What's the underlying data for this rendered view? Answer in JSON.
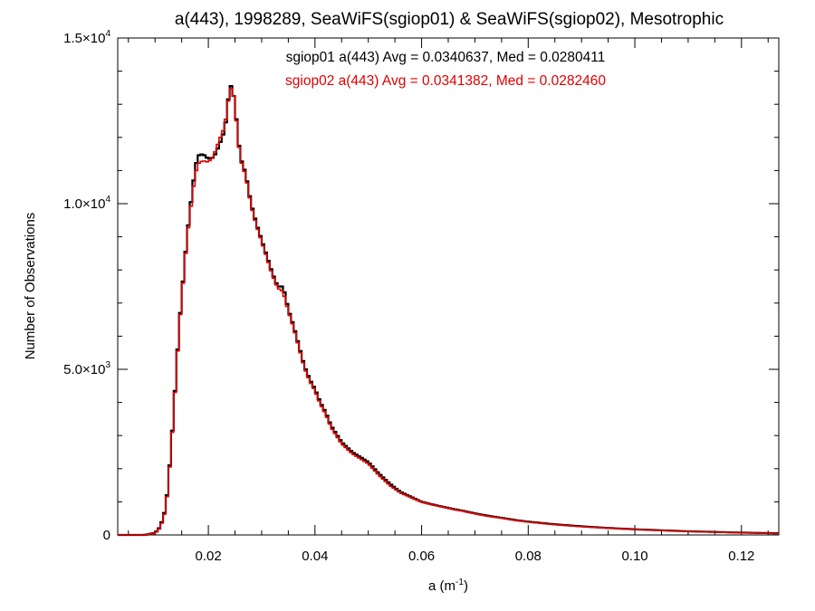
{
  "chart_data": {
    "type": "line",
    "title": "a(443), 1998289, SeaWiFS(sgiop01) & SeaWiFS(sgiop02), Mesotrophic",
    "xlabel": {
      "base": "a (m",
      "sup": "-1",
      "tail": ")"
    },
    "ylabel": "Number of Observations",
    "xlim": [
      0.003,
      0.127
    ],
    "ylim": [
      0,
      15000
    ],
    "grid": false,
    "x_ticks": [
      {
        "value": 0.02,
        "label": "0.02"
      },
      {
        "value": 0.04,
        "label": "0.04"
      },
      {
        "value": 0.06,
        "label": "0.06"
      },
      {
        "value": 0.08,
        "label": "0.08"
      },
      {
        "value": 0.1,
        "label": "0.10"
      },
      {
        "value": 0.12,
        "label": "0.12"
      }
    ],
    "y_ticks": [
      {
        "value": 0,
        "mant": "0",
        "exp": ""
      },
      {
        "value": 5000,
        "mant": "5.0×10",
        "exp": "3"
      },
      {
        "value": 10000,
        "mant": "1.0×10",
        "exp": "4"
      },
      {
        "value": 15000,
        "mant": "1.5×10",
        "exp": "4"
      }
    ],
    "annotations": [
      {
        "text": "sgiop01 a(443) Avg = 0.0340637, Med = 0.0280411",
        "color": "#000000"
      },
      {
        "text": "sgiop02 a(443) Avg = 0.0341382, Med = 0.0282460",
        "color": "#e00000"
      }
    ],
    "series": [
      {
        "color": "#000000",
        "points": [
          [
            0.003,
            0
          ],
          [
            0.008,
            0
          ],
          [
            0.01,
            60
          ],
          [
            0.011,
            250
          ],
          [
            0.012,
            800
          ],
          [
            0.0125,
            1600
          ],
          [
            0.013,
            2600
          ],
          [
            0.0135,
            3700
          ],
          [
            0.014,
            5000
          ],
          [
            0.0145,
            6200
          ],
          [
            0.015,
            7200
          ],
          [
            0.0155,
            8100
          ],
          [
            0.016,
            9000
          ],
          [
            0.0165,
            9700
          ],
          [
            0.017,
            10400
          ],
          [
            0.0175,
            11000
          ],
          [
            0.018,
            11450
          ],
          [
            0.019,
            11500
          ],
          [
            0.02,
            11350
          ],
          [
            0.021,
            11400
          ],
          [
            0.022,
            11750
          ],
          [
            0.023,
            12200
          ],
          [
            0.0235,
            12700
          ],
          [
            0.024,
            13600
          ],
          [
            0.0245,
            13500
          ],
          [
            0.025,
            13000
          ],
          [
            0.0255,
            12100
          ],
          [
            0.026,
            11400
          ],
          [
            0.027,
            10900
          ],
          [
            0.028,
            10000
          ],
          [
            0.029,
            9400
          ],
          [
            0.03,
            8900
          ],
          [
            0.031,
            8400
          ],
          [
            0.032,
            7900
          ],
          [
            0.033,
            7500
          ],
          [
            0.034,
            7500
          ],
          [
            0.035,
            6800
          ],
          [
            0.036,
            6300
          ],
          [
            0.037,
            5700
          ],
          [
            0.038,
            5100
          ],
          [
            0.039,
            4700
          ],
          [
            0.04,
            4400
          ],
          [
            0.041,
            4000
          ],
          [
            0.042,
            3700
          ],
          [
            0.043,
            3300
          ],
          [
            0.044,
            3050
          ],
          [
            0.045,
            2800
          ],
          [
            0.046,
            2650
          ],
          [
            0.047,
            2500
          ],
          [
            0.048,
            2400
          ],
          [
            0.049,
            2300
          ],
          [
            0.05,
            2200
          ],
          [
            0.052,
            1850
          ],
          [
            0.054,
            1550
          ],
          [
            0.056,
            1300
          ],
          [
            0.058,
            1150
          ],
          [
            0.06,
            1000
          ],
          [
            0.062,
            920
          ],
          [
            0.064,
            850
          ],
          [
            0.066,
            780
          ],
          [
            0.068,
            720
          ],
          [
            0.07,
            650
          ],
          [
            0.072,
            590
          ],
          [
            0.074,
            540
          ],
          [
            0.076,
            490
          ],
          [
            0.078,
            440
          ],
          [
            0.08,
            400
          ],
          [
            0.085,
            320
          ],
          [
            0.09,
            260
          ],
          [
            0.095,
            210
          ],
          [
            0.1,
            170
          ],
          [
            0.105,
            140
          ],
          [
            0.11,
            110
          ],
          [
            0.115,
            90
          ],
          [
            0.12,
            70
          ],
          [
            0.127,
            50
          ]
        ]
      },
      {
        "color": "#e00000",
        "points": [
          [
            0.003,
            0
          ],
          [
            0.008,
            0
          ],
          [
            0.01,
            50
          ],
          [
            0.011,
            220
          ],
          [
            0.012,
            760
          ],
          [
            0.0125,
            1550
          ],
          [
            0.013,
            2550
          ],
          [
            0.0135,
            3650
          ],
          [
            0.014,
            4950
          ],
          [
            0.0145,
            6150
          ],
          [
            0.015,
            7150
          ],
          [
            0.0155,
            8050
          ],
          [
            0.016,
            8950
          ],
          [
            0.0165,
            9600
          ],
          [
            0.017,
            10250
          ],
          [
            0.0175,
            10800
          ],
          [
            0.018,
            11200
          ],
          [
            0.019,
            11300
          ],
          [
            0.02,
            11250
          ],
          [
            0.021,
            11450
          ],
          [
            0.022,
            11900
          ],
          [
            0.023,
            12300
          ],
          [
            0.0235,
            12800
          ],
          [
            0.024,
            13400
          ],
          [
            0.0245,
            13550
          ],
          [
            0.025,
            12950
          ],
          [
            0.0255,
            12050
          ],
          [
            0.026,
            11350
          ],
          [
            0.027,
            10850
          ],
          [
            0.028,
            9950
          ],
          [
            0.029,
            9350
          ],
          [
            0.03,
            8850
          ],
          [
            0.031,
            8350
          ],
          [
            0.032,
            7850
          ],
          [
            0.033,
            7450
          ],
          [
            0.034,
            7350
          ],
          [
            0.035,
            6750
          ],
          [
            0.036,
            6250
          ],
          [
            0.037,
            5650
          ],
          [
            0.038,
            5050
          ],
          [
            0.039,
            4650
          ],
          [
            0.04,
            4350
          ],
          [
            0.041,
            3950
          ],
          [
            0.042,
            3650
          ],
          [
            0.043,
            3250
          ],
          [
            0.044,
            3000
          ],
          [
            0.045,
            2750
          ],
          [
            0.046,
            2600
          ],
          [
            0.047,
            2450
          ],
          [
            0.048,
            2350
          ],
          [
            0.049,
            2250
          ],
          [
            0.05,
            2150
          ],
          [
            0.052,
            1800
          ],
          [
            0.054,
            1500
          ],
          [
            0.056,
            1270
          ],
          [
            0.058,
            1130
          ],
          [
            0.06,
            990
          ],
          [
            0.062,
            910
          ],
          [
            0.064,
            840
          ],
          [
            0.066,
            770
          ],
          [
            0.068,
            710
          ],
          [
            0.07,
            640
          ],
          [
            0.072,
            580
          ],
          [
            0.074,
            530
          ],
          [
            0.076,
            480
          ],
          [
            0.078,
            430
          ],
          [
            0.08,
            390
          ],
          [
            0.085,
            310
          ],
          [
            0.09,
            250
          ],
          [
            0.095,
            205
          ],
          [
            0.1,
            165
          ],
          [
            0.105,
            135
          ],
          [
            0.11,
            105
          ],
          [
            0.115,
            85
          ],
          [
            0.12,
            65
          ],
          [
            0.127,
            45
          ]
        ]
      }
    ]
  }
}
